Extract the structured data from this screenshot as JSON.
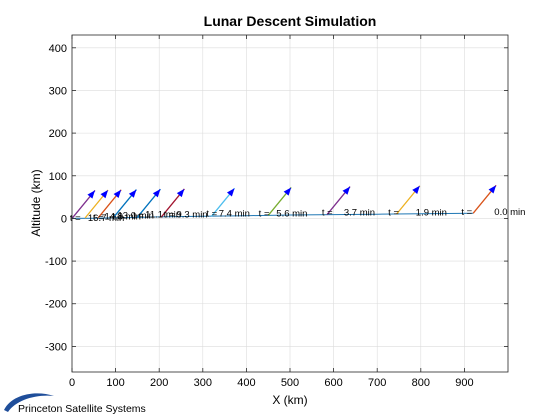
{
  "brand": {
    "name": "Princeton Satellite Systems",
    "logo_color": "#1f4e9a"
  },
  "chart_data": {
    "type": "line",
    "title": "Lunar Descent Simulation",
    "xlabel": "X (km)",
    "ylabel": "Altitude (km)",
    "xlim": [
      0,
      1000
    ],
    "ylim": [
      -360,
      430
    ],
    "xticks": [
      0,
      100,
      200,
      300,
      400,
      500,
      600,
      700,
      800,
      900
    ],
    "yticks": [
      -300,
      -200,
      -100,
      0,
      100,
      200,
      300,
      400
    ],
    "grid": true,
    "trajectory": {
      "x": [
        0,
        50,
        100,
        150,
        200,
        300,
        400,
        500,
        600,
        700,
        800,
        920
      ],
      "y": [
        0,
        0.5,
        1.5,
        2.5,
        3.5,
        5,
        6.5,
        8,
        9,
        10,
        11,
        12
      ],
      "color": "#1f77b4"
    },
    "thrust_vectors": [
      {
        "x": 0,
        "y": 0,
        "color": "#7e2f8e"
      },
      {
        "x": 30,
        "y": 1,
        "color": "#edb120"
      },
      {
        "x": 60,
        "y": 1.5,
        "color": "#d95319"
      },
      {
        "x": 95,
        "y": 2,
        "color": "#0072bd"
      },
      {
        "x": 150,
        "y": 3,
        "color": "#0072bd"
      },
      {
        "x": 205,
        "y": 3.5,
        "color": "#a2142f"
      },
      {
        "x": 320,
        "y": 5,
        "color": "#4dbeee"
      },
      {
        "x": 450,
        "y": 7,
        "color": "#77ac30"
      },
      {
        "x": 585,
        "y": 9,
        "color": "#7e2f8e"
      },
      {
        "x": 745,
        "y": 11,
        "color": "#edb120"
      },
      {
        "x": 920,
        "y": 12,
        "color": "#d95319"
      }
    ],
    "arrow_head_color": "#0000ff",
    "annotations": [
      {
        "text": "0.0 min",
        "x": 1040,
        "y": 8
      },
      {
        "text": "t =",
        "x": 918,
        "y": 8
      },
      {
        "text": "1.9 min",
        "x": 860,
        "y": 7
      },
      {
        "text": "t =",
        "x": 750,
        "y": 7
      },
      {
        "text": "3.7 min",
        "x": 695,
        "y": 7
      },
      {
        "text": "t =",
        "x": 598,
        "y": 7
      },
      {
        "text": "5.6 min",
        "x": 540,
        "y": 4
      },
      {
        "text": "t =",
        "x": 453,
        "y": 4
      },
      {
        "text": "7.4 min",
        "x": 408,
        "y": 4
      },
      {
        "text": "t =",
        "x": 333,
        "y": 4
      },
      {
        "text": "9.3 min",
        "x": 311,
        "y": 2
      },
      {
        "text": "t =",
        "x": 235,
        "y": 2
      },
      {
        "text": "11.1 min",
        "x": 250,
        "y": 2
      },
      {
        "text": "t =",
        "x": 165,
        "y": 0
      },
      {
        "text": "13.0 min",
        "x": 188,
        "y": 0
      },
      {
        "text": "t =",
        "x": 118,
        "y": -3
      },
      {
        "text": "14.8 min",
        "x": 158,
        "y": -3
      },
      {
        "text": "t =",
        "x": 73,
        "y": -5
      },
      {
        "text": "16.7 min",
        "x": 120,
        "y": -6
      },
      {
        "text": "t =",
        "x": 20,
        "y": -6
      }
    ]
  }
}
